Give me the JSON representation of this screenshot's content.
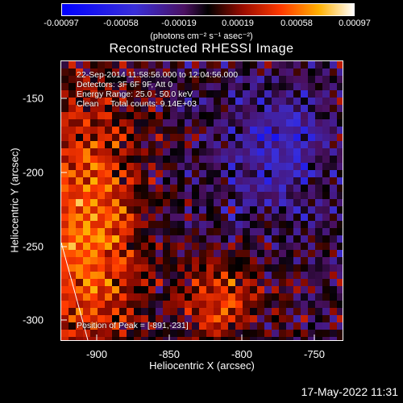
{
  "colorbar": {
    "ticks": [
      "-0.00097",
      "-0.00058",
      "-0.00019",
      "0.00019",
      "0.00058",
      "0.00097"
    ],
    "units": "(photons cm⁻² s⁻¹ asec⁻²)"
  },
  "title": "Reconstructed RHESSI Image",
  "info": {
    "line1": "22-Sep-2014 11:58:56.000 to 12:04:56.000",
    "line2": "Detectors: 3F 6F 9F, Att 0",
    "line3": "Energy Range: 25.0 - 50.0 keV",
    "line4": "Clean     Total counts: 9.14E+03"
  },
  "peak": "Position of Peak = [-891,-231]",
  "axes": {
    "xlabel": "Heliocentric X (arcsec)",
    "ylabel": "Heliocentric Y (arcsec)",
    "xticks": [
      "-900",
      "-850",
      "-800",
      "-750"
    ],
    "yticks": [
      "-150",
      "-200",
      "-250",
      "-300"
    ]
  },
  "timestamp": "17-May-2022 11:31"
}
